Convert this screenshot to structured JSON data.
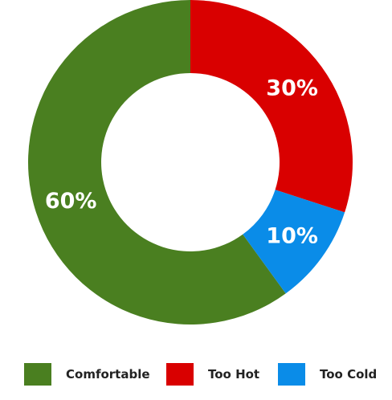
{
  "chart_data": {
    "type": "pie",
    "variant": "donut",
    "title": "",
    "categories": [
      "Comfortable",
      "Too Hot",
      "Too Cold"
    ],
    "values": [
      60,
      30,
      10
    ],
    "value_labels": [
      "60%",
      "30%",
      "10%"
    ],
    "colors": [
      "#4a7f20",
      "#d90000",
      "#0a8ce8"
    ],
    "legend": {
      "placement": "bottom",
      "items": [
        {
          "label": "Comfortable",
          "color": "#4a7f20"
        },
        {
          "label": "Too Hot",
          "color": "#d90000"
        },
        {
          "label": "Too Cold",
          "color": "#0a8ce8"
        }
      ]
    }
  }
}
